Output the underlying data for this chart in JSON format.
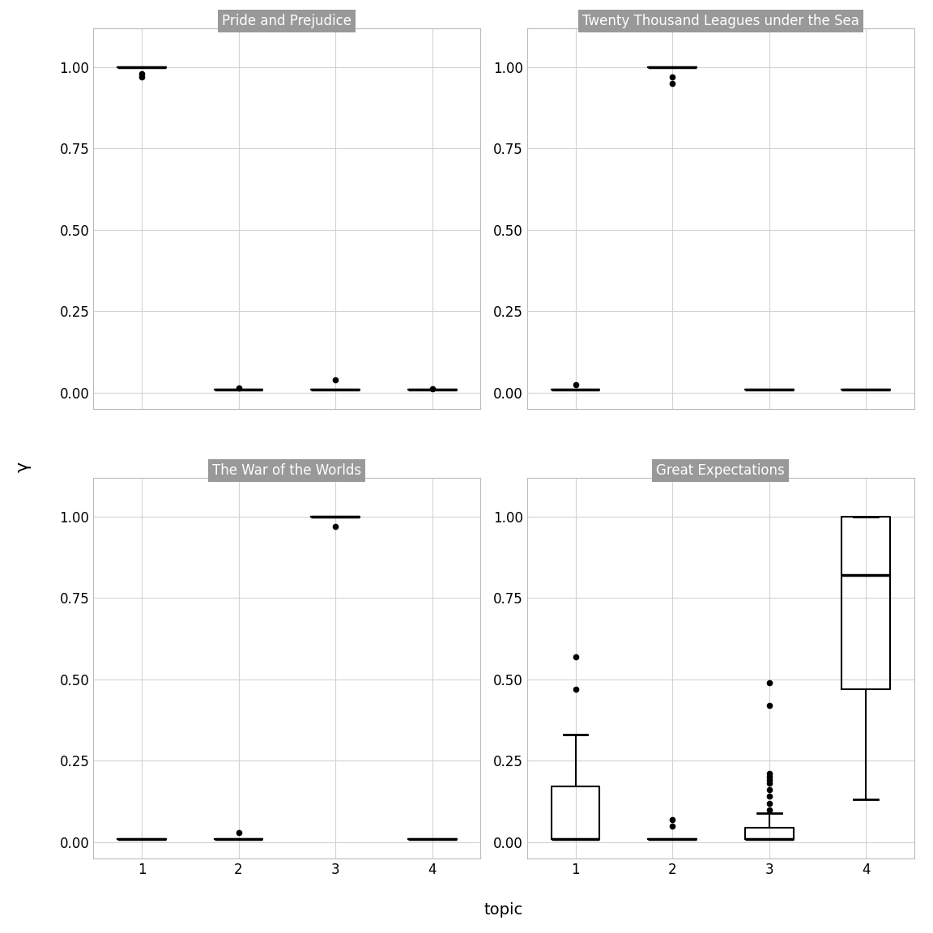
{
  "books": [
    "Pride and Prejudice",
    "Twenty Thousand Leagues under the Sea",
    "The War of the Worlds",
    "Great Expectations"
  ],
  "n_topics": 4,
  "xlabel": "topic",
  "ylabel": "γ",
  "background_color": "#ffffff",
  "panel_bg": "#ffffff",
  "grid_color": "#d3d3d3",
  "title_bg": "#999999",
  "title_color": "#ffffff",
  "ylim": [
    -0.05,
    1.12
  ],
  "pride_data": {
    "1": [
      1.0,
      1.0,
      1.0,
      1.0,
      1.0,
      0.97,
      1.0,
      1.0,
      1.0,
      1.0,
      1.0,
      1.0,
      1.0,
      1.0,
      1.0,
      1.0,
      1.0,
      1.0,
      1.0,
      1.0,
      1.0,
      1.0,
      1.0,
      1.0,
      1.0,
      1.0,
      1.0,
      1.0,
      1.0,
      1.0,
      1.0,
      1.0,
      1.0,
      1.0,
      1.0,
      0.98
    ],
    "2": [
      0.01,
      0.01,
      0.01,
      0.01,
      0.01,
      0.01,
      0.01,
      0.01,
      0.01,
      0.01,
      0.01,
      0.01,
      0.015,
      0.01,
      0.01,
      0.01,
      0.01,
      0.01,
      0.01,
      0.01,
      0.01,
      0.01,
      0.01,
      0.01,
      0.01,
      0.01,
      0.01,
      0.01,
      0.01,
      0.01,
      0.01,
      0.01,
      0.01,
      0.01,
      0.01,
      0.01
    ],
    "3": [
      0.01,
      0.01,
      0.01,
      0.01,
      0.01,
      0.01,
      0.01,
      0.01,
      0.01,
      0.01,
      0.01,
      0.01,
      0.01,
      0.01,
      0.01,
      0.01,
      0.01,
      0.01,
      0.01,
      0.04,
      0.01,
      0.01,
      0.01,
      0.01,
      0.01,
      0.01,
      0.01,
      0.01,
      0.01,
      0.01,
      0.01,
      0.01,
      0.01,
      0.01,
      0.01,
      0.01
    ],
    "4": [
      0.01,
      0.01,
      0.01,
      0.01,
      0.01,
      0.01,
      0.01,
      0.01,
      0.01,
      0.01,
      0.01,
      0.01,
      0.01,
      0.01,
      0.01,
      0.01,
      0.01,
      0.01,
      0.01,
      0.01,
      0.01,
      0.01,
      0.01,
      0.01,
      0.01,
      0.01,
      0.01,
      0.01,
      0.01,
      0.01,
      0.01,
      0.01,
      0.01,
      0.013,
      0.01,
      0.01
    ]
  },
  "ttl_data": {
    "1": [
      0.01,
      0.01,
      0.01,
      0.01,
      0.01,
      0.01,
      0.01,
      0.01,
      0.01,
      0.01,
      0.01,
      0.01,
      0.01,
      0.01,
      0.01,
      0.01,
      0.01,
      0.01,
      0.01,
      0.01,
      0.01,
      0.025,
      0.01,
      0.01,
      0.01,
      0.01,
      0.01,
      0.01,
      0.01,
      0.01,
      0.01,
      0.01,
      0.01,
      0.01,
      0.01,
      0.01
    ],
    "2": [
      1.0,
      1.0,
      1.0,
      1.0,
      1.0,
      1.0,
      0.97,
      1.0,
      1.0,
      1.0,
      1.0,
      1.0,
      1.0,
      1.0,
      1.0,
      1.0,
      1.0,
      1.0,
      1.0,
      1.0,
      1.0,
      1.0,
      1.0,
      1.0,
      1.0,
      1.0,
      1.0,
      1.0,
      1.0,
      1.0,
      1.0,
      1.0,
      1.0,
      1.0,
      1.0,
      0.95
    ],
    "3": [
      0.01,
      0.01,
      0.01,
      0.01,
      0.01,
      0.01,
      0.01,
      0.01,
      0.01,
      0.01,
      0.01,
      0.01,
      0.01,
      0.01,
      0.01,
      0.01,
      0.01,
      0.01,
      0.01,
      0.01,
      0.01,
      0.01,
      0.01,
      0.01,
      0.01,
      0.01,
      0.01,
      0.01,
      0.01,
      0.01,
      0.01,
      0.01,
      0.01,
      0.01,
      0.01,
      0.01
    ],
    "4": [
      0.01,
      0.01,
      0.01,
      0.01,
      0.01,
      0.01,
      0.01,
      0.01,
      0.01,
      0.01,
      0.01,
      0.01,
      0.01,
      0.01,
      0.01,
      0.01,
      0.01,
      0.01,
      0.01,
      0.01,
      0.01,
      0.01,
      0.01,
      0.01,
      0.01,
      0.01,
      0.01,
      0.01,
      0.01,
      0.01,
      0.01,
      0.01,
      0.01,
      0.01,
      0.01,
      0.01
    ]
  },
  "wow_data": {
    "1": [
      0.01,
      0.01,
      0.01,
      0.01,
      0.01,
      0.01,
      0.01,
      0.01,
      0.01,
      0.01,
      0.01,
      0.01,
      0.01,
      0.01,
      0.01,
      0.01
    ],
    "2": [
      0.01,
      0.01,
      0.01,
      0.01,
      0.01,
      0.01,
      0.01,
      0.01,
      0.03,
      0.01,
      0.01,
      0.01,
      0.01,
      0.01,
      0.01,
      0.01
    ],
    "3": [
      1.0,
      1.0,
      1.0,
      1.0,
      1.0,
      1.0,
      1.0,
      1.0,
      0.97,
      1.0,
      1.0,
      1.0,
      1.0,
      1.0,
      1.0,
      1.0
    ],
    "4": [
      0.01,
      0.01,
      0.01,
      0.01,
      0.01,
      0.01,
      0.01,
      0.01,
      0.01,
      0.01,
      0.01,
      0.01,
      0.01,
      0.01,
      0.01,
      0.01
    ]
  },
  "ge_data": {
    "1": [
      0.57,
      0.47,
      0.33,
      0.3,
      0.3,
      0.29,
      0.28,
      0.28,
      0.27,
      0.27,
      0.27,
      0.25,
      0.22,
      0.2,
      0.18,
      0.16,
      0.14,
      0.12,
      0.1,
      0.08,
      0.07,
      0.06,
      0.05,
      0.04,
      0.03,
      0.02,
      0.02,
      0.01,
      0.01,
      0.01,
      0.01,
      0.01,
      0.01,
      0.01,
      0.01,
      0.01,
      0.01,
      0.01,
      0.01,
      0.01,
      0.01,
      0.01,
      0.01,
      0.01,
      0.01,
      0.01,
      0.01,
      0.01,
      0.01,
      0.01,
      0.01,
      0.01,
      0.01,
      0.01,
      0.01,
      0.01,
      0.01,
      0.01,
      0.01
    ],
    "2": [
      0.07,
      0.05,
      0.01,
      0.01,
      0.01,
      0.01,
      0.01,
      0.01,
      0.01,
      0.01,
      0.01,
      0.01,
      0.01,
      0.01,
      0.01,
      0.01,
      0.01,
      0.01,
      0.01,
      0.01,
      0.01,
      0.01,
      0.01,
      0.01,
      0.01,
      0.01,
      0.01,
      0.01,
      0.01,
      0.01,
      0.01,
      0.01,
      0.01,
      0.01,
      0.01,
      0.01,
      0.01,
      0.01,
      0.01,
      0.01,
      0.01,
      0.01,
      0.01,
      0.01,
      0.01,
      0.01,
      0.01,
      0.01,
      0.01,
      0.01,
      0.01,
      0.01,
      0.01,
      0.01,
      0.01,
      0.01,
      0.01,
      0.01,
      0.01
    ],
    "3": [
      0.49,
      0.42,
      0.21,
      0.2,
      0.19,
      0.18,
      0.16,
      0.14,
      0.12,
      0.1,
      0.09,
      0.08,
      0.07,
      0.06,
      0.05,
      0.04,
      0.04,
      0.03,
      0.02,
      0.02,
      0.01,
      0.01,
      0.01,
      0.01,
      0.01,
      0.01,
      0.01,
      0.01,
      0.01,
      0.01,
      0.01,
      0.01,
      0.01,
      0.01,
      0.01,
      0.01,
      0.01,
      0.01,
      0.01,
      0.01,
      0.01,
      0.01,
      0.01,
      0.01,
      0.01,
      0.01,
      0.01,
      0.01,
      0.01,
      0.01,
      0.01,
      0.01,
      0.01,
      0.01,
      0.01,
      0.01,
      0.01,
      0.01,
      0.01
    ],
    "4": [
      1.0,
      1.0,
      1.0,
      1.0,
      1.0,
      1.0,
      1.0,
      1.0,
      1.0,
      1.0,
      1.0,
      1.0,
      1.0,
      1.0,
      1.0,
      1.0,
      1.0,
      1.0,
      1.0,
      1.0,
      1.0,
      0.98,
      0.97,
      0.96,
      0.95,
      0.92,
      0.9,
      0.88,
      0.85,
      0.82,
      0.8,
      0.78,
      0.75,
      0.72,
      0.7,
      0.67,
      0.65,
      0.62,
      0.6,
      0.57,
      0.55,
      0.52,
      0.5,
      0.47,
      0.45,
      0.42,
      0.4,
      0.38,
      0.35,
      0.33,
      0.3,
      0.28,
      0.25,
      0.23,
      0.2,
      0.18,
      0.16,
      0.13,
      0.47
    ]
  }
}
